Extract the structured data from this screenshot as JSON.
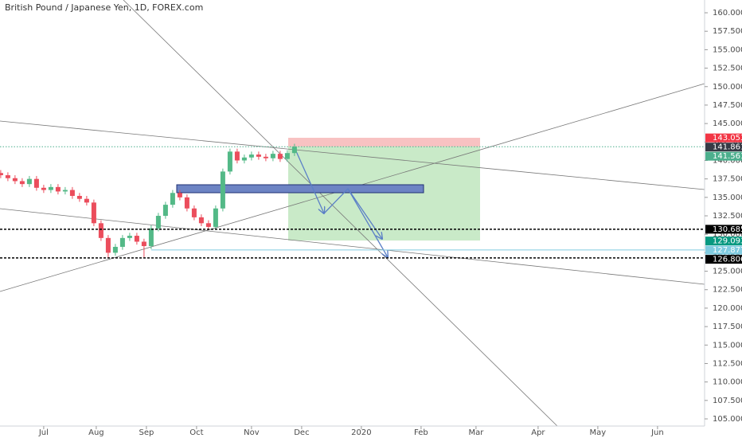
{
  "chart_data": {
    "type": "candlestick",
    "title": "British Pound / Japanese Yen, 1D, FOREX.com",
    "x": [
      -18,
      -15,
      -12,
      -9,
      -6,
      -3,
      0,
      3,
      6,
      9,
      12,
      15,
      18,
      21,
      24,
      27,
      30,
      33,
      36,
      39,
      42,
      45,
      48,
      51,
      54,
      57,
      60,
      63,
      66,
      69,
      72,
      75,
      78,
      81,
      84,
      87,
      90,
      93,
      96,
      99,
      102,
      105
    ],
    "open": [
      138.3,
      138.0,
      137.6,
      137.2,
      136.8,
      137.5,
      136.3,
      136.0,
      136.4,
      135.8,
      136.0,
      135.2,
      134.8,
      134.3,
      131.5,
      129.5,
      127.5,
      128.3,
      129.5,
      129.8,
      129.0,
      128.4,
      130.8,
      132.5,
      134.0,
      135.6,
      135.0,
      133.5,
      132.3,
      131.5,
      131.0,
      133.5,
      138.5,
      141.2,
      140.0,
      140.4,
      140.8,
      140.5,
      140.3,
      140.9,
      140.2,
      141.0
    ],
    "high": [
      138.7,
      138.4,
      138.0,
      137.6,
      137.9,
      137.9,
      136.7,
      136.8,
      136.8,
      136.4,
      136.4,
      135.6,
      135.2,
      134.7,
      131.9,
      129.9,
      128.7,
      129.9,
      130.2,
      130.2,
      129.4,
      131.2,
      132.9,
      134.4,
      136.0,
      136.0,
      135.4,
      133.9,
      132.7,
      131.9,
      133.9,
      138.9,
      141.6,
      141.6,
      140.8,
      141.2,
      141.2,
      140.9,
      141.3,
      141.3,
      141.4,
      142.26
    ],
    "low": [
      137.6,
      137.2,
      136.8,
      136.4,
      136.4,
      135.9,
      135.6,
      135.6,
      135.4,
      135.4,
      134.8,
      134.4,
      133.9,
      131.1,
      129.1,
      126.8,
      127.1,
      127.9,
      129.1,
      128.6,
      126.9,
      128.0,
      130.4,
      132.1,
      133.6,
      134.6,
      133.1,
      131.9,
      131.1,
      130.6,
      130.6,
      133.1,
      138.1,
      139.6,
      139.6,
      140.0,
      140.1,
      139.9,
      139.9,
      139.8,
      139.8,
      140.6
    ],
    "close": [
      138.0,
      137.6,
      137.2,
      136.8,
      137.5,
      136.3,
      136.0,
      136.4,
      135.8,
      136.0,
      135.2,
      134.8,
      134.3,
      131.5,
      129.5,
      127.5,
      128.3,
      129.5,
      129.8,
      129.0,
      128.4,
      130.8,
      132.5,
      134.0,
      135.6,
      135.0,
      133.5,
      132.3,
      131.5,
      131.0,
      133.5,
      138.5,
      141.2,
      140.0,
      140.4,
      140.8,
      140.5,
      140.3,
      140.9,
      140.2,
      141.0,
      141.86
    ],
    "up_color": "#53b987",
    "down_color": "#eb4d5c",
    "xlim": [
      -18.3,
      276.7
    ],
    "xticks": [
      {
        "value": 0,
        "label": "Jul"
      },
      {
        "value": 22,
        "label": "Aug"
      },
      {
        "value": 43,
        "label": "Sep"
      },
      {
        "value": 64,
        "label": "Oct"
      },
      {
        "value": 87,
        "label": "Nov"
      },
      {
        "value": 108,
        "label": "Dec"
      },
      {
        "value": 133,
        "label": "2020"
      },
      {
        "value": 158,
        "label": "Feb"
      },
      {
        "value": 181,
        "label": "Mar"
      },
      {
        "value": 207,
        "label": "Apr"
      },
      {
        "value": 232,
        "label": "May"
      },
      {
        "value": 257,
        "label": "Jun"
      }
    ],
    "ylim": [
      104.03,
      161.73
    ],
    "yticks": [
      {
        "value": 105,
        "label": "105.000"
      },
      {
        "value": 107.5,
        "label": "107.500"
      },
      {
        "value": 110,
        "label": "110.000"
      },
      {
        "value": 112.5,
        "label": "112.500"
      },
      {
        "value": 115,
        "label": "115.000"
      },
      {
        "value": 117.5,
        "label": "117.500"
      },
      {
        "value": 120,
        "label": "120.000"
      },
      {
        "value": 122.5,
        "label": "122.500"
      },
      {
        "value": 125,
        "label": "125.000"
      },
      {
        "value": 127.5,
        "label": "127.500"
      },
      {
        "value": 130,
        "label": "130.000"
      },
      {
        "value": 132.5,
        "label": "132.500"
      },
      {
        "value": 135,
        "label": "135.000"
      },
      {
        "value": 137.5,
        "label": "137.500"
      },
      {
        "value": 140,
        "label": "140.000"
      },
      {
        "value": 142.5,
        "label": "142.500"
      },
      {
        "value": 145,
        "label": "145.000"
      },
      {
        "value": 147.5,
        "label": "147.500"
      },
      {
        "value": 150,
        "label": "150.000"
      },
      {
        "value": 152.5,
        "label": "152.500"
      },
      {
        "value": 155,
        "label": "155.000"
      },
      {
        "value": 157.5,
        "label": "157.500"
      },
      {
        "value": 160,
        "label": "160.000"
      }
    ],
    "price_labels": {
      "values": [
        143.053,
        141.861,
        141.561,
        130.685,
        129.093,
        127.877,
        126.806
      ],
      "colors": [
        "#f23645",
        "#363a45",
        "#4caf8d",
        "#000000",
        "#089981",
        "#80cbe0",
        "#000000"
      ],
      "lines": [
        "none",
        "dotted",
        "none",
        "dashed",
        "none",
        "solid",
        "dashed"
      ]
    }
  }
}
